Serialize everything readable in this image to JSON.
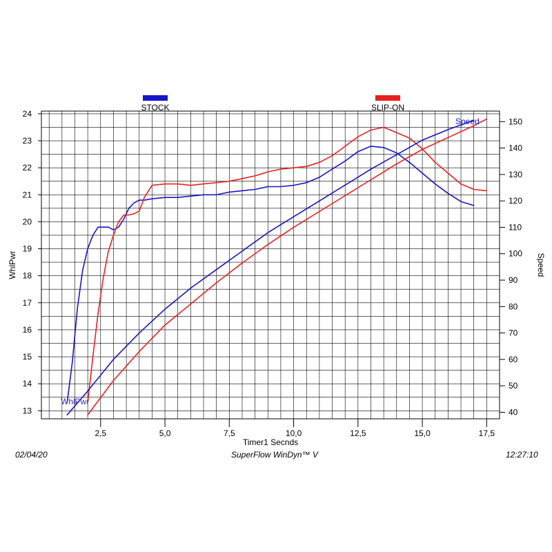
{
  "footer": {
    "date": "02/04/20",
    "software": "SuperFlow WinDyn™ V",
    "time": "12:27:10"
  },
  "colors": {
    "stock": "#1515c8",
    "slip_on": "#e82020",
    "grid": "#000000",
    "background": "#ffffff"
  },
  "chart_data": {
    "type": "line",
    "title": "",
    "xlabel": "Timer1 Secnds",
    "ylabel": "WhlPwr",
    "y2label": "Speed",
    "xlim": [
      0.2,
      18.0
    ],
    "ylim": [
      12.7,
      24.1
    ],
    "y2lim": [
      37.5,
      154
    ],
    "x_ticks": [
      "2,5",
      "5,0",
      "7,5",
      "10,0",
      "12,5",
      "15,0",
      "17,5"
    ],
    "x_tick_values": [
      2.5,
      5.0,
      7.5,
      10.0,
      12.5,
      15.0,
      17.5
    ],
    "y_ticks": [
      13,
      14,
      15,
      16,
      17,
      18,
      19,
      20,
      21,
      22,
      23,
      24
    ],
    "y2_ticks": [
      40,
      50,
      60,
      70,
      80,
      90,
      100,
      110,
      120,
      130,
      140,
      150
    ],
    "legend": [
      {
        "name": "STOCK",
        "color": "#1515c8"
      },
      {
        "name": "SLIP-ON",
        "color": "#e82020"
      }
    ],
    "legend_placement": "top",
    "grid": true,
    "annotations": [
      {
        "text": "WhlPwr",
        "x": 1.2,
        "y": 13.3,
        "axis": "left",
        "color": "#3a2ab8"
      },
      {
        "text": "Speed",
        "x": 17.3,
        "y": 151,
        "axis": "right",
        "color": "#1515c8"
      }
    ],
    "series": [
      {
        "name": "STOCK",
        "metric": "WhlPwr",
        "axis": "left",
        "color": "#1515c8",
        "points": [
          [
            1.2,
            13.3
          ],
          [
            1.4,
            14.8
          ],
          [
            1.6,
            16.8
          ],
          [
            1.8,
            18.2
          ],
          [
            2.0,
            19.0
          ],
          [
            2.2,
            19.5
          ],
          [
            2.4,
            19.8
          ],
          [
            2.6,
            19.8
          ],
          [
            2.8,
            19.8
          ],
          [
            3.0,
            19.7
          ],
          [
            3.2,
            19.8
          ],
          [
            3.4,
            20.1
          ],
          [
            3.6,
            20.5
          ],
          [
            3.8,
            20.7
          ],
          [
            4.0,
            20.8
          ],
          [
            4.2,
            20.8
          ],
          [
            4.5,
            20.85
          ],
          [
            5.0,
            20.9
          ],
          [
            5.5,
            20.9
          ],
          [
            6.0,
            20.95
          ],
          [
            6.5,
            21.0
          ],
          [
            7.0,
            21.0
          ],
          [
            7.5,
            21.1
          ],
          [
            8.0,
            21.15
          ],
          [
            8.5,
            21.2
          ],
          [
            9.0,
            21.3
          ],
          [
            9.5,
            21.3
          ],
          [
            10.0,
            21.35
          ],
          [
            10.5,
            21.45
          ],
          [
            11.0,
            21.65
          ],
          [
            11.5,
            21.95
          ],
          [
            12.0,
            22.25
          ],
          [
            12.5,
            22.6
          ],
          [
            13.0,
            22.8
          ],
          [
            13.5,
            22.75
          ],
          [
            14.0,
            22.55
          ],
          [
            14.5,
            22.2
          ],
          [
            15.0,
            21.8
          ],
          [
            15.5,
            21.4
          ],
          [
            16.0,
            21.05
          ],
          [
            16.5,
            20.75
          ],
          [
            17.0,
            20.6
          ]
        ]
      },
      {
        "name": "SLIP-ON",
        "metric": "WhlPwr",
        "axis": "left",
        "color": "#e82020",
        "points": [
          [
            2.0,
            13.3
          ],
          [
            2.2,
            15.0
          ],
          [
            2.4,
            16.6
          ],
          [
            2.6,
            17.9
          ],
          [
            2.8,
            18.9
          ],
          [
            3.0,
            19.5
          ],
          [
            3.2,
            20.0
          ],
          [
            3.4,
            20.25
          ],
          [
            3.6,
            20.25
          ],
          [
            3.8,
            20.3
          ],
          [
            4.0,
            20.4
          ],
          [
            4.2,
            20.9
          ],
          [
            4.5,
            21.35
          ],
          [
            5.0,
            21.4
          ],
          [
            5.5,
            21.4
          ],
          [
            6.0,
            21.35
          ],
          [
            6.5,
            21.4
          ],
          [
            7.0,
            21.45
          ],
          [
            7.5,
            21.5
          ],
          [
            8.0,
            21.6
          ],
          [
            8.5,
            21.7
          ],
          [
            9.0,
            21.85
          ],
          [
            9.5,
            21.95
          ],
          [
            10.0,
            22.0
          ],
          [
            10.5,
            22.05
          ],
          [
            11.0,
            22.2
          ],
          [
            11.5,
            22.45
          ],
          [
            12.0,
            22.8
          ],
          [
            12.5,
            23.15
          ],
          [
            13.0,
            23.4
          ],
          [
            13.5,
            23.5
          ],
          [
            14.0,
            23.3
          ],
          [
            14.5,
            23.1
          ],
          [
            15.0,
            22.7
          ],
          [
            15.5,
            22.2
          ],
          [
            16.0,
            21.8
          ],
          [
            16.5,
            21.4
          ],
          [
            17.0,
            21.2
          ],
          [
            17.5,
            21.15
          ]
        ]
      },
      {
        "name": "STOCK",
        "metric": "Speed",
        "axis": "right",
        "color": "#1515c8",
        "points": [
          [
            1.2,
            39
          ],
          [
            2.0,
            48
          ],
          [
            3.0,
            60
          ],
          [
            4.0,
            70
          ],
          [
            5.0,
            79
          ],
          [
            6.0,
            87
          ],
          [
            7.0,
            94
          ],
          [
            8.0,
            101
          ],
          [
            9.0,
            108
          ],
          [
            10.0,
            114
          ],
          [
            11.0,
            120
          ],
          [
            12.0,
            126
          ],
          [
            13.0,
            132
          ],
          [
            14.0,
            137.5
          ],
          [
            15.0,
            143
          ],
          [
            16.0,
            147
          ],
          [
            17.0,
            150.5
          ]
        ]
      },
      {
        "name": "SLIP-ON",
        "metric": "Speed",
        "axis": "right",
        "color": "#e82020",
        "points": [
          [
            2.0,
            39
          ],
          [
            3.0,
            52
          ],
          [
            4.0,
            63
          ],
          [
            5.0,
            73
          ],
          [
            6.0,
            81
          ],
          [
            7.0,
            89
          ],
          [
            8.0,
            96.5
          ],
          [
            9.0,
            103.5
          ],
          [
            10.0,
            110
          ],
          [
            11.0,
            116
          ],
          [
            12.0,
            122
          ],
          [
            13.0,
            128
          ],
          [
            14.0,
            134
          ],
          [
            15.0,
            139.5
          ],
          [
            16.0,
            144
          ],
          [
            17.0,
            148.5
          ],
          [
            17.5,
            151
          ]
        ]
      }
    ]
  }
}
